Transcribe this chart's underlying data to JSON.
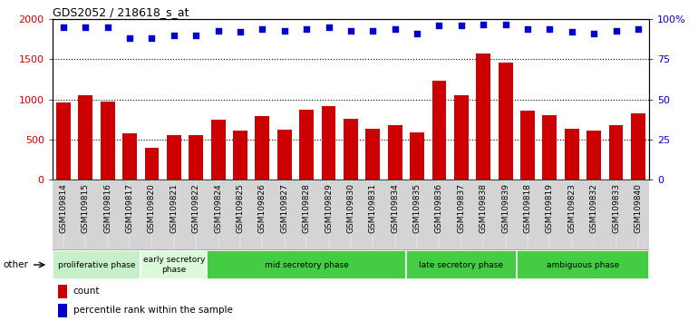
{
  "title": "GDS2052 / 218618_s_at",
  "samples": [
    "GSM109814",
    "GSM109815",
    "GSM109816",
    "GSM109817",
    "GSM109820",
    "GSM109821",
    "GSM109822",
    "GSM109824",
    "GSM109825",
    "GSM109826",
    "GSM109827",
    "GSM109828",
    "GSM109829",
    "GSM109830",
    "GSM109831",
    "GSM109834",
    "GSM109835",
    "GSM109836",
    "GSM109837",
    "GSM109838",
    "GSM109839",
    "GSM109818",
    "GSM109819",
    "GSM109823",
    "GSM109832",
    "GSM109833",
    "GSM109840"
  ],
  "counts": [
    960,
    1050,
    980,
    580,
    400,
    560,
    560,
    750,
    610,
    790,
    620,
    870,
    920,
    760,
    630,
    680,
    590,
    1240,
    1050,
    1570,
    1460,
    860,
    810,
    630,
    610,
    680,
    830
  ],
  "percentiles": [
    95,
    95,
    95,
    88,
    88,
    90,
    90,
    93,
    92,
    94,
    93,
    94,
    95,
    93,
    93,
    94,
    91,
    96,
    96,
    97,
    97,
    94,
    94,
    92,
    91,
    93,
    94
  ],
  "bar_color": "#cc0000",
  "dot_color": "#0000cc",
  "ylim_left": [
    0,
    2000
  ],
  "ylim_right": [
    0,
    100
  ],
  "yticks_left": [
    0,
    500,
    1000,
    1500,
    2000
  ],
  "yticks_right": [
    0,
    25,
    50,
    75,
    100
  ],
  "yticklabels_right": [
    "0",
    "25",
    "50",
    "75",
    "100%"
  ],
  "plot_bg_color": "#ffffff",
  "tick_area_bg": "#d4d4d4",
  "phase_data": [
    {
      "label": "proliferative phase",
      "start": 0,
      "end": 4,
      "color": "#c8f0c8"
    },
    {
      "label": "early secretory\nphase",
      "start": 4,
      "end": 7,
      "color": "#dafada"
    },
    {
      "label": "mid secretory phase",
      "start": 7,
      "end": 16,
      "color": "#44cc44"
    },
    {
      "label": "late secretory phase",
      "start": 16,
      "end": 21,
      "color": "#44cc44"
    },
    {
      "label": "ambiguous phase",
      "start": 21,
      "end": 27,
      "color": "#44cc44"
    }
  ]
}
